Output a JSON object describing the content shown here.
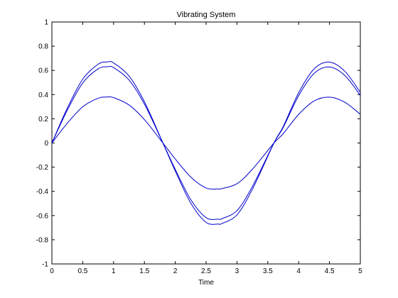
{
  "chart_data": {
    "type": "line",
    "title": "Vibrating System",
    "xlabel": "Time",
    "ylabel": "",
    "xlim": [
      0,
      5
    ],
    "ylim": [
      -1,
      1
    ],
    "grid": false,
    "x_ticks": [
      0,
      0.5,
      1,
      1.5,
      2,
      2.5,
      3,
      3.5,
      4,
      4.5,
      5
    ],
    "x_tick_labels": [
      "0",
      "0.5",
      "1",
      "1.5",
      "2",
      "2.5",
      "3",
      "3.5",
      "4",
      "4.5",
      "5"
    ],
    "y_ticks": [
      -1,
      -0.8,
      -0.6,
      -0.4,
      -0.2,
      0,
      0.2,
      0.4,
      0.6,
      0.8,
      1
    ],
    "y_tick_labels": [
      "-1",
      "-0.8",
      "-0.6",
      "-0.4",
      "-0.2",
      "0",
      "0.2",
      "0.4",
      "0.6",
      "0.8",
      "1"
    ],
    "line_color": "#0000cc",
    "x": [
      0,
      0.25,
      0.5,
      0.75,
      0.9,
      1.0,
      1.25,
      1.5,
      1.8,
      2.0,
      2.25,
      2.5,
      2.7,
      2.75,
      3.0,
      3.25,
      3.6,
      3.75,
      4.0,
      4.25,
      4.5,
      4.75,
      5.0
    ],
    "series": [
      {
        "values": [
          0,
          0.288,
          0.527,
          0.651,
          0.67,
          0.662,
          0.554,
          0.341,
          0,
          -0.232,
          -0.496,
          -0.656,
          -0.67,
          -0.667,
          -0.594,
          -0.383,
          0,
          0.136,
          0.415,
          0.612,
          0.668,
          0.592,
          0.418
        ]
      },
      {
        "values": [
          0,
          0.271,
          0.496,
          0.613,
          0.63,
          0.623,
          0.521,
          0.321,
          0,
          -0.218,
          -0.467,
          -0.617,
          -0.63,
          -0.627,
          -0.559,
          -0.36,
          0,
          0.128,
          0.391,
          0.575,
          0.628,
          0.557,
          0.393
        ]
      },
      {
        "values": [
          0,
          0.163,
          0.299,
          0.37,
          0.38,
          0.375,
          0.314,
          0.193,
          0,
          -0.132,
          -0.281,
          -0.372,
          -0.38,
          -0.378,
          -0.337,
          -0.217,
          0,
          0.077,
          0.236,
          0.347,
          0.379,
          0.336,
          0.237
        ]
      }
    ]
  }
}
